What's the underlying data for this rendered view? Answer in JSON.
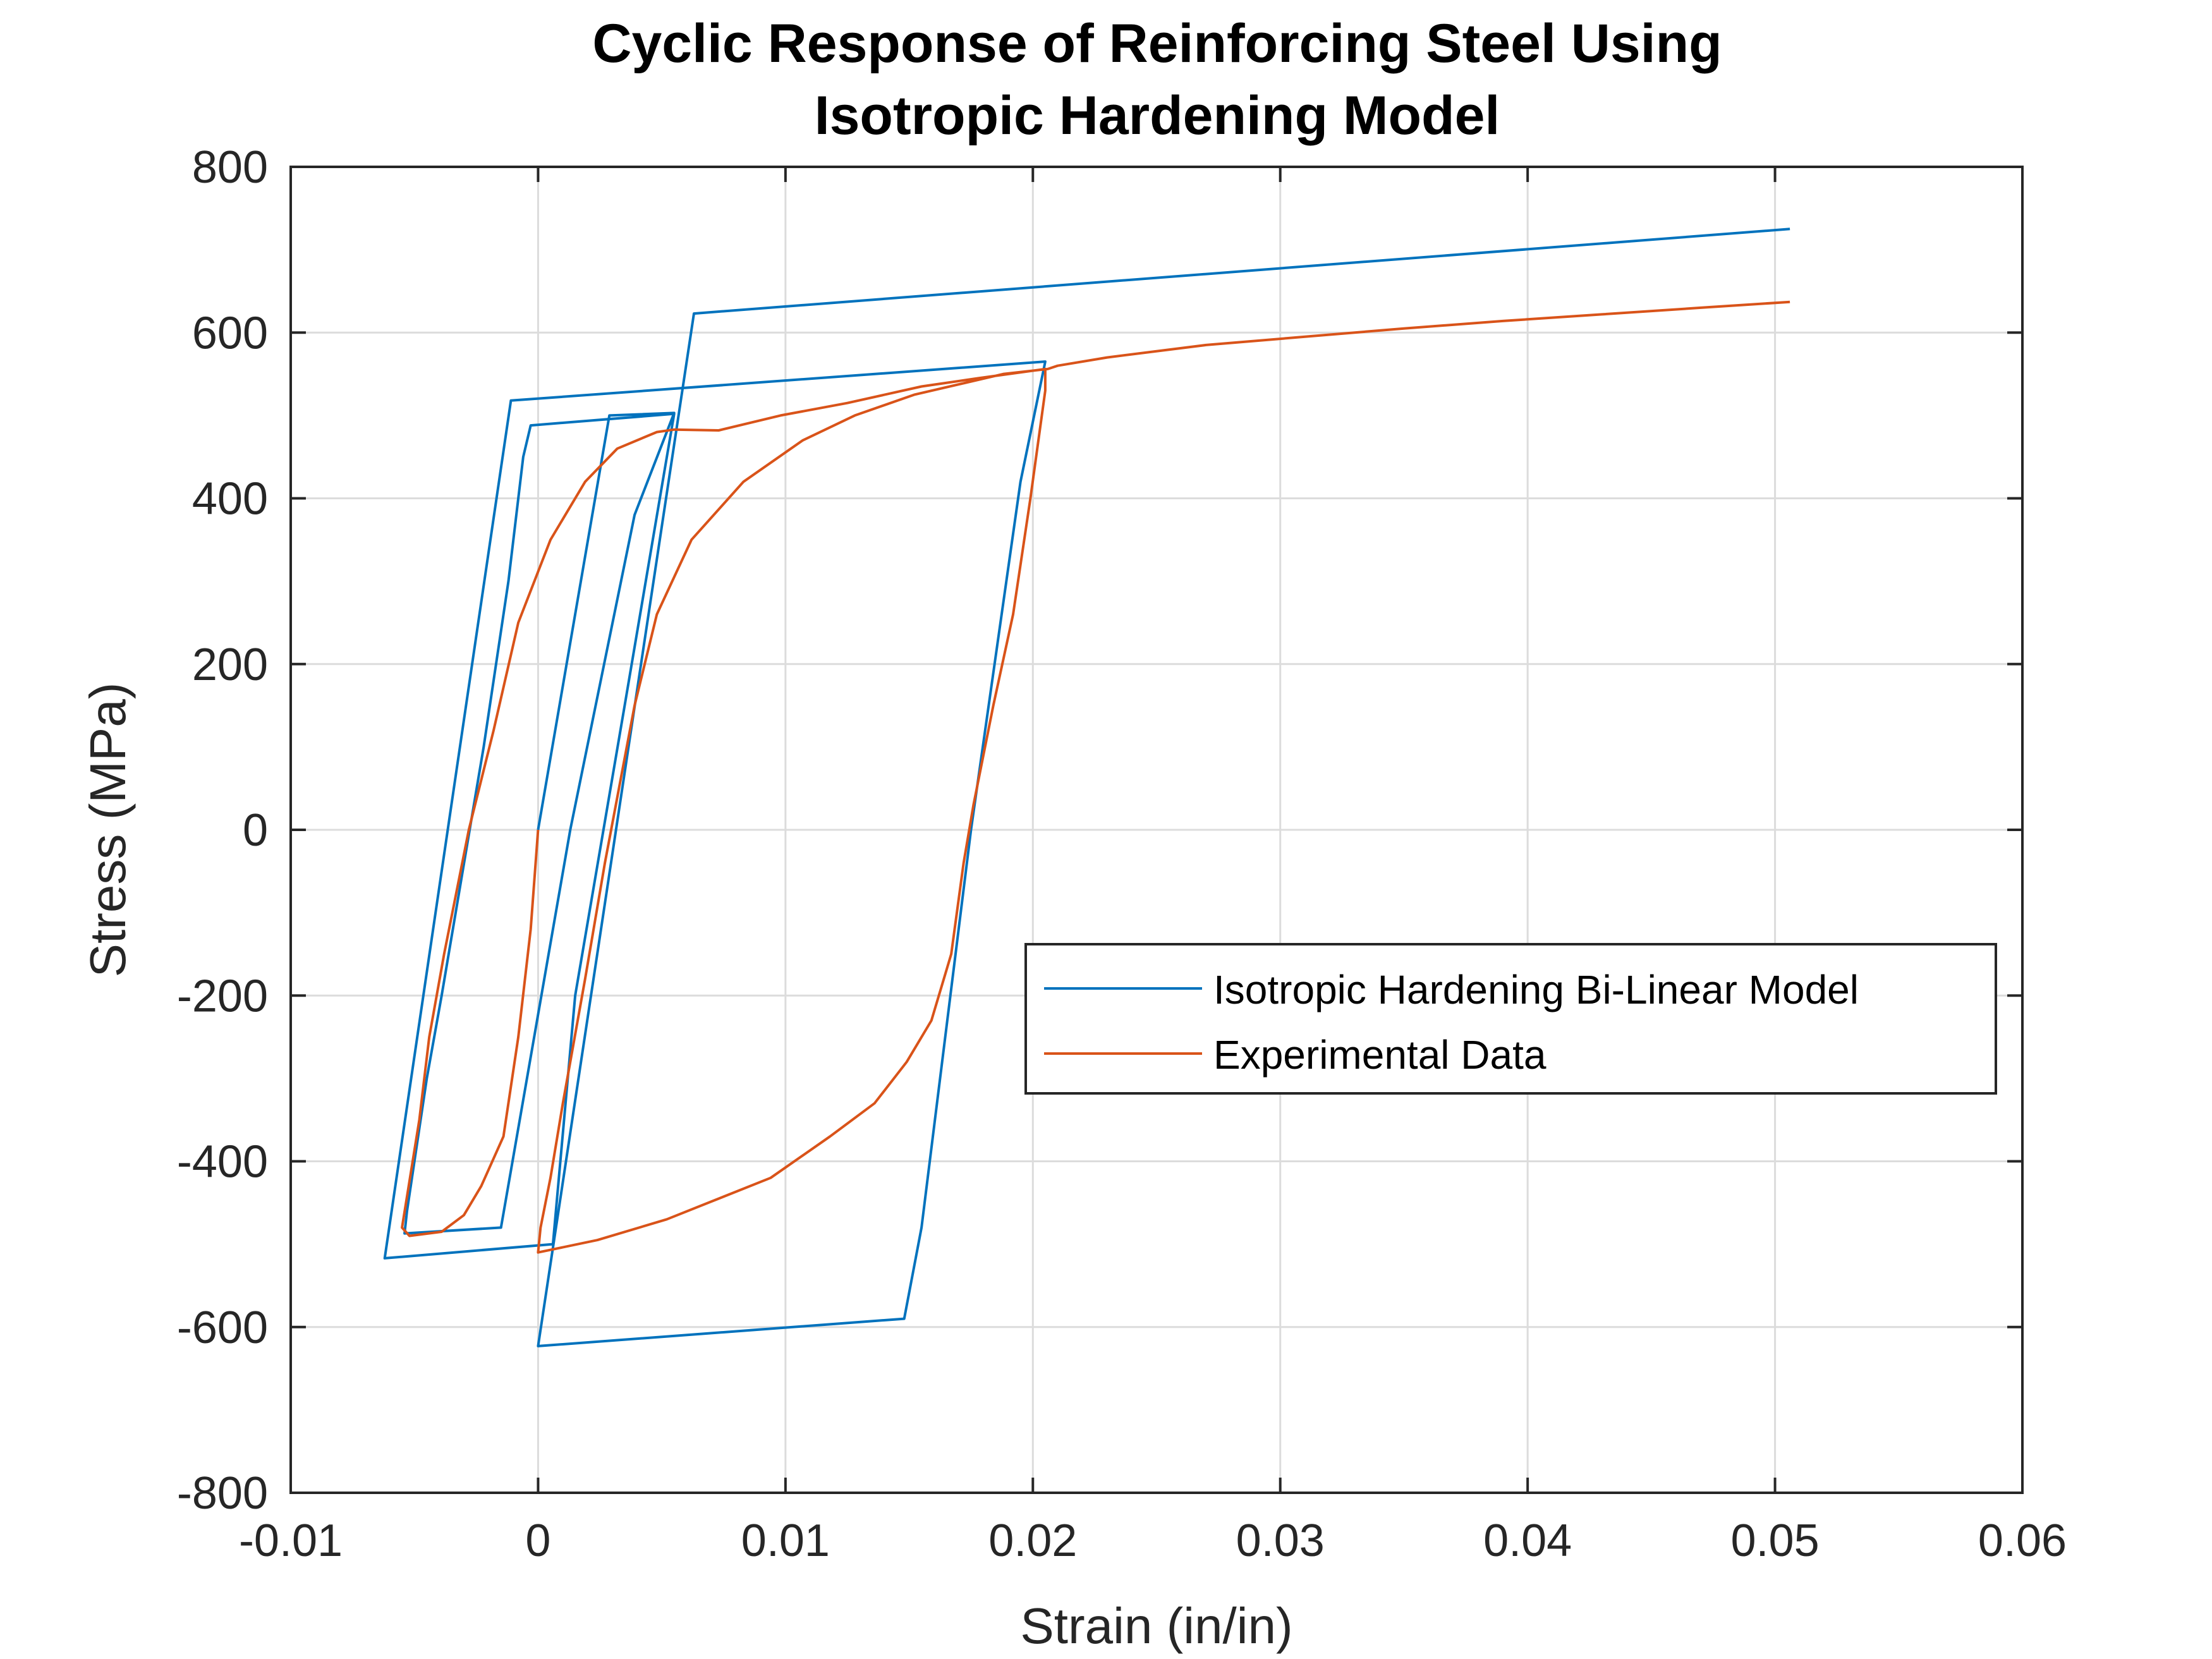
{
  "chart_data": {
    "type": "line",
    "title_lines": [
      "Cyclic Response of Reinforcing Steel Using",
      "Isotropic Hardening Model"
    ],
    "xlabel": "Strain (in/in)",
    "ylabel": "Stress (MPa)",
    "xlim": [
      -0.01,
      0.06
    ],
    "ylim": [
      -800,
      800
    ],
    "x_ticks": [
      -0.01,
      0,
      0.01,
      0.02,
      0.03,
      0.04,
      0.05,
      0.06
    ],
    "x_tick_labels": [
      "-0.01",
      "0",
      "0.01",
      "0.02",
      "0.03",
      "0.04",
      "0.05",
      "0.06"
    ],
    "y_ticks": [
      -800,
      -600,
      -400,
      -200,
      0,
      200,
      400,
      600,
      800
    ],
    "y_tick_labels": [
      "-800",
      "-600",
      "-400",
      "-200",
      "0",
      "200",
      "400",
      "600",
      "800"
    ],
    "grid": true,
    "legend_position": "right-middle",
    "series": [
      {
        "name": "Isotropic Hardening Bi-Linear Model",
        "color": "#0072BD",
        "points": [
          [
            0,
            0
          ],
          [
            0.00288,
            500
          ],
          [
            0.0055,
            503
          ],
          [
            0.0039,
            380
          ],
          [
            0.0013,
            0
          ],
          [
            -0.0015,
            -480
          ],
          [
            -0.0054,
            -487
          ],
          [
            -0.0053,
            -460
          ],
          [
            -0.0045,
            -300
          ],
          [
            -0.0039,
            -200
          ],
          [
            -0.0022,
            100
          ],
          [
            -0.0012,
            300
          ],
          [
            -0.0008,
            400
          ],
          [
            -0.0006,
            450
          ],
          [
            -0.0003,
            488
          ],
          [
            0.0055,
            502
          ],
          [
            0.0035,
            150
          ],
          [
            0.0015,
            -200
          ],
          [
            0.0006,
            -500
          ],
          [
            -0.0062,
            -517
          ],
          [
            -0.0011,
            518
          ],
          [
            0.0205,
            565
          ],
          [
            0.0195,
            420
          ],
          [
            0.0175,
            0
          ],
          [
            0.0155,
            -480
          ],
          [
            0.0148,
            -590
          ],
          [
            0.0,
            -623
          ],
          [
            0.0063,
            623
          ],
          [
            0.0506,
            725
          ]
        ]
      },
      {
        "name": "Experimental Data",
        "color": "#D95319",
        "points": [
          [
            0,
            0
          ],
          [
            -0.0003,
            -120
          ],
          [
            -0.0008,
            -250
          ],
          [
            -0.0014,
            -370
          ],
          [
            -0.0023,
            -430
          ],
          [
            -0.003,
            -465
          ],
          [
            -0.0039,
            -485
          ],
          [
            -0.0052,
            -490
          ],
          [
            -0.0055,
            -480
          ],
          [
            -0.0048,
            -350
          ],
          [
            -0.0044,
            -250
          ],
          [
            -0.0038,
            -150
          ],
          [
            -0.0028,
            0
          ],
          [
            -0.0018,
            120
          ],
          [
            -0.0008,
            250
          ],
          [
            0.0005,
            350
          ],
          [
            0.0019,
            420
          ],
          [
            0.0032,
            460
          ],
          [
            0.0048,
            480
          ],
          [
            0.0055,
            483
          ],
          [
            0.0073,
            482
          ],
          [
            0.0098,
            500
          ],
          [
            0.0125,
            515
          ],
          [
            0.0155,
            535
          ],
          [
            0.0178,
            545
          ],
          [
            0.0205,
            556
          ],
          [
            0.0205,
            530
          ],
          [
            0.0199,
            400
          ],
          [
            0.0192,
            260
          ],
          [
            0.0184,
            150
          ],
          [
            0.0176,
            30
          ],
          [
            0.0172,
            -40
          ],
          [
            0.0167,
            -150
          ],
          [
            0.0159,
            -230
          ],
          [
            0.0149,
            -280
          ],
          [
            0.0136,
            -330
          ],
          [
            0.0118,
            -370
          ],
          [
            0.0094,
            -420
          ],
          [
            0.0052,
            -470
          ],
          [
            0.0024,
            -495
          ],
          [
            0.0,
            -510
          ],
          [
            0.0001,
            -480
          ],
          [
            0.0005,
            -420
          ],
          [
            0.001,
            -330
          ],
          [
            0.0019,
            -180
          ],
          [
            0.0027,
            -40
          ],
          [
            0.0039,
            150
          ],
          [
            0.0048,
            260
          ],
          [
            0.0062,
            350
          ],
          [
            0.0083,
            420
          ],
          [
            0.0107,
            470
          ],
          [
            0.0128,
            500
          ],
          [
            0.0152,
            525
          ],
          [
            0.0188,
            550
          ],
          [
            0.0206,
            556
          ],
          [
            0.021,
            560
          ],
          [
            0.023,
            570
          ],
          [
            0.027,
            585
          ],
          [
            0.031,
            595
          ],
          [
            0.035,
            605
          ],
          [
            0.039,
            614
          ],
          [
            0.043,
            622
          ],
          [
            0.047,
            630
          ],
          [
            0.0506,
            637
          ]
        ]
      }
    ]
  }
}
